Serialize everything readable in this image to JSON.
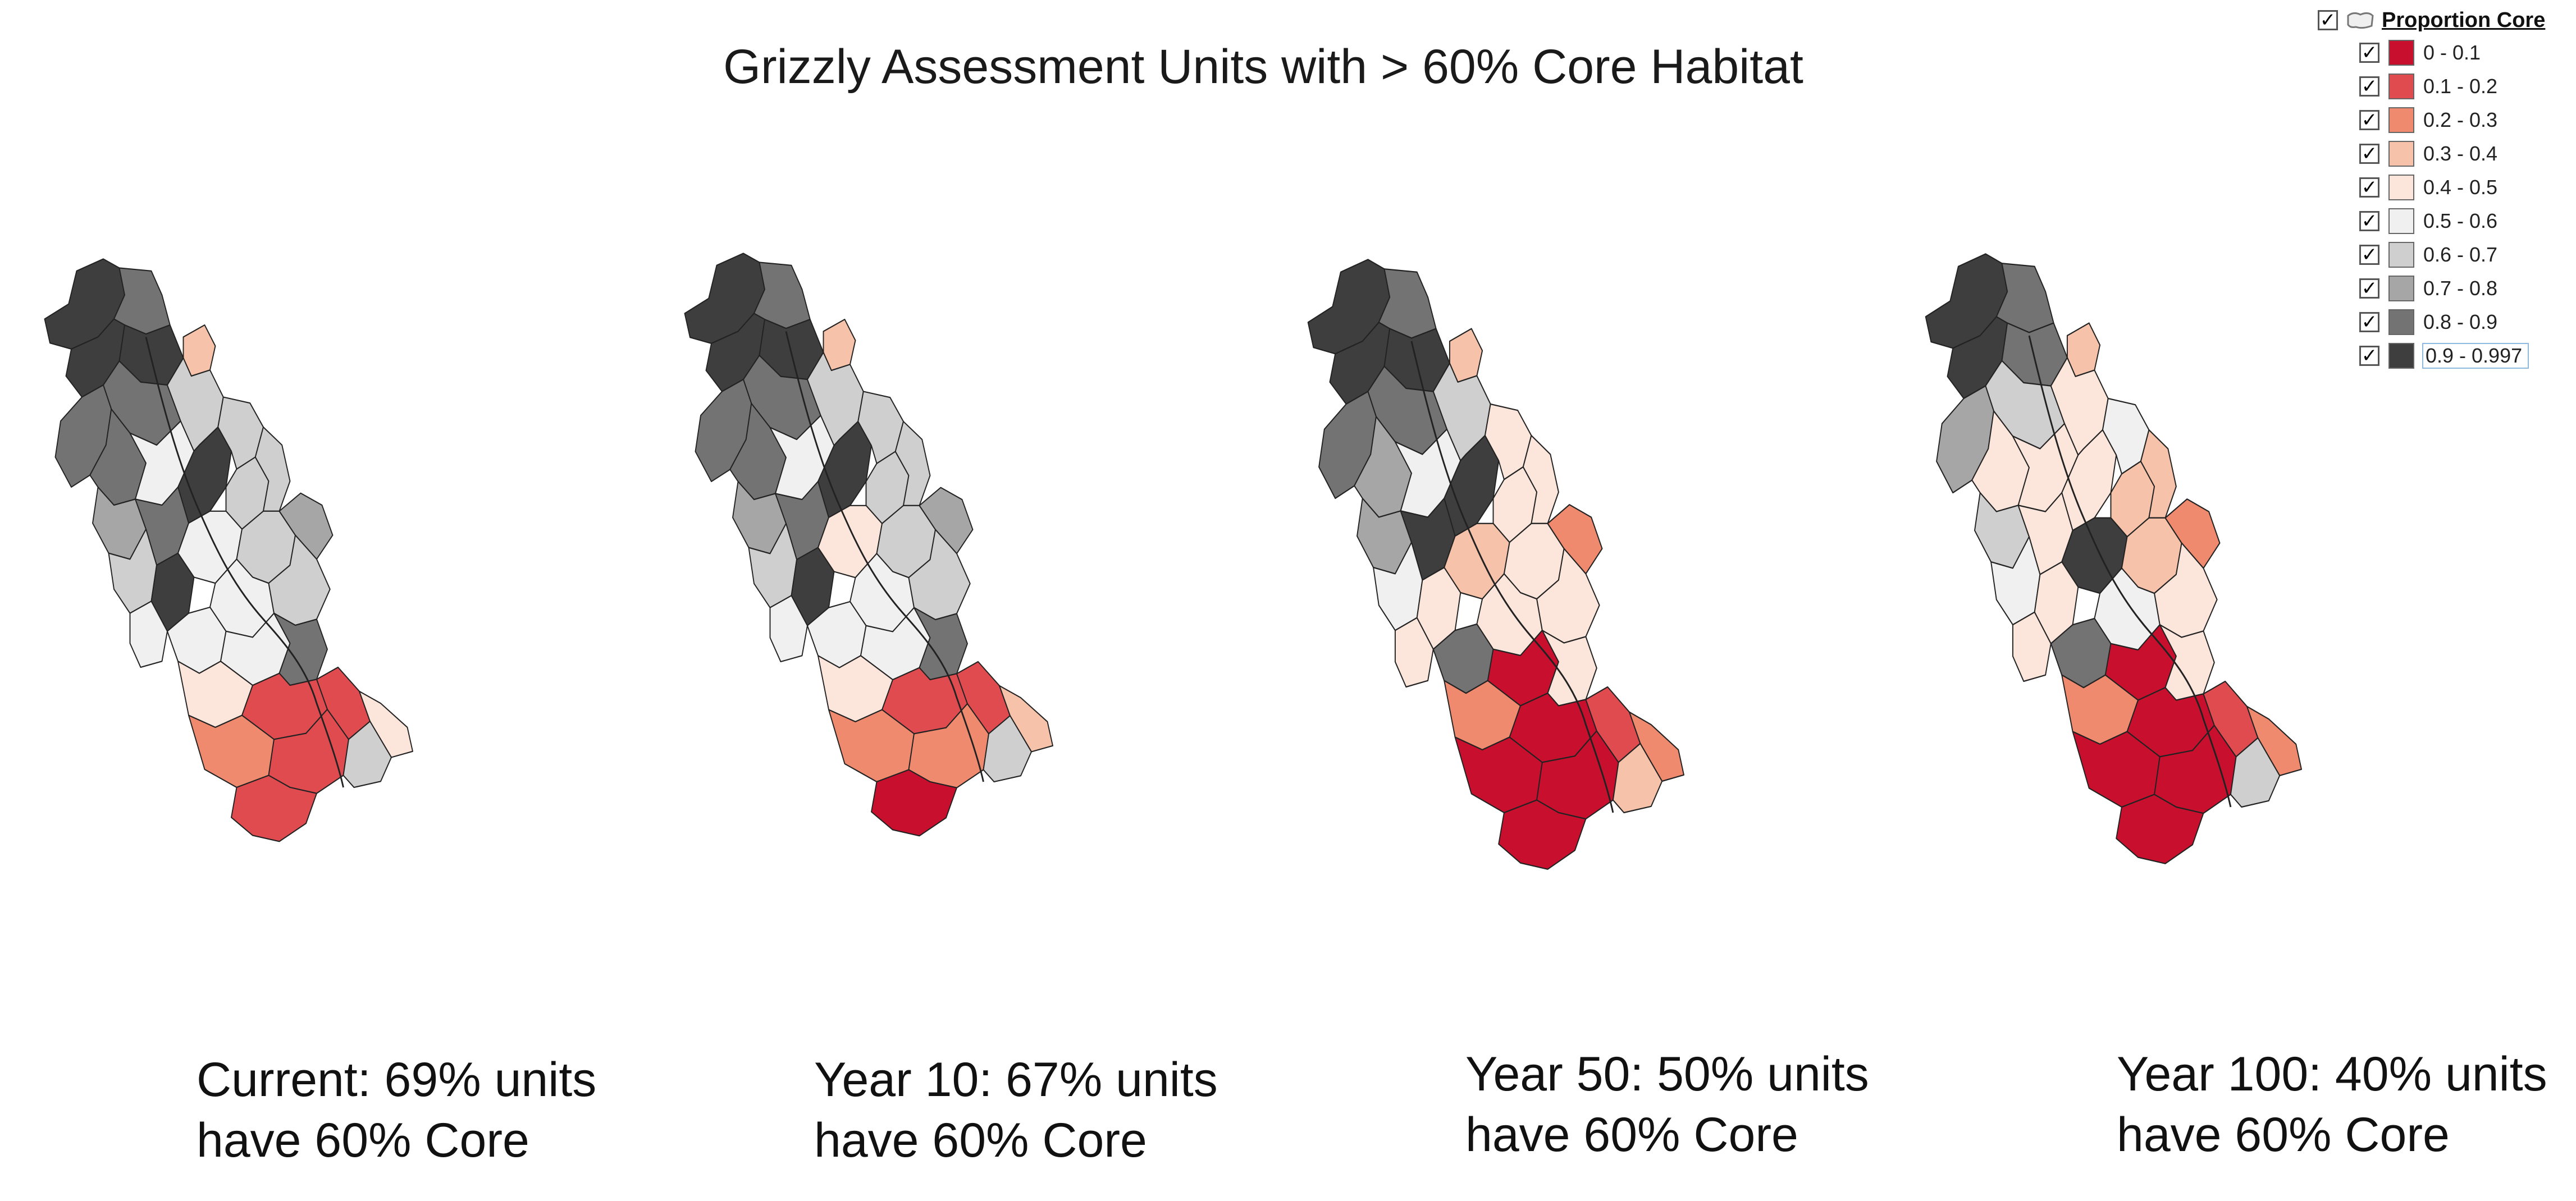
{
  "title": "Grizzly Assessment Units with > 60% Core Habitat",
  "legend": {
    "layer_label": "Proportion Core",
    "items": [
      {
        "label": "0 - 0.1",
        "color": "#c8102e"
      },
      {
        "label": "0.1 - 0.2",
        "color": "#e04b50"
      },
      {
        "label": "0.2 - 0.3",
        "color": "#ef8a6f"
      },
      {
        "label": "0.3 - 0.4",
        "color": "#f6c2aa"
      },
      {
        "label": "0.4 - 0.5",
        "color": "#fce6dc"
      },
      {
        "label": "0.5 - 0.6",
        "color": "#f0f0f0"
      },
      {
        "label": "0.6 - 0.7",
        "color": "#cfcfcf"
      },
      {
        "label": "0.7 - 0.8",
        "color": "#a6a6a6"
      },
      {
        "label": "0.8 - 0.9",
        "color": "#737373"
      },
      {
        "label": "0.9 - 0.997",
        "color": "#3e3e3e"
      }
    ]
  },
  "panels": [
    {
      "line1": "Current: 69% units",
      "line2": "have 60% Core",
      "percent_units": 69
    },
    {
      "line1": "Year 10: 67% units",
      "line2": "have 60% Core",
      "percent_units": 67
    },
    {
      "line1": "Year 50: 50% units",
      "line2": "have 60% Core",
      "percent_units": 50
    },
    {
      "line1": "Year 100: 40% units",
      "line2": "have 60% Core",
      "percent_units": 40
    }
  ],
  "icons": {
    "checkbox": "checkbox-checked-icon",
    "layer": "polygon-layer-icon"
  }
}
